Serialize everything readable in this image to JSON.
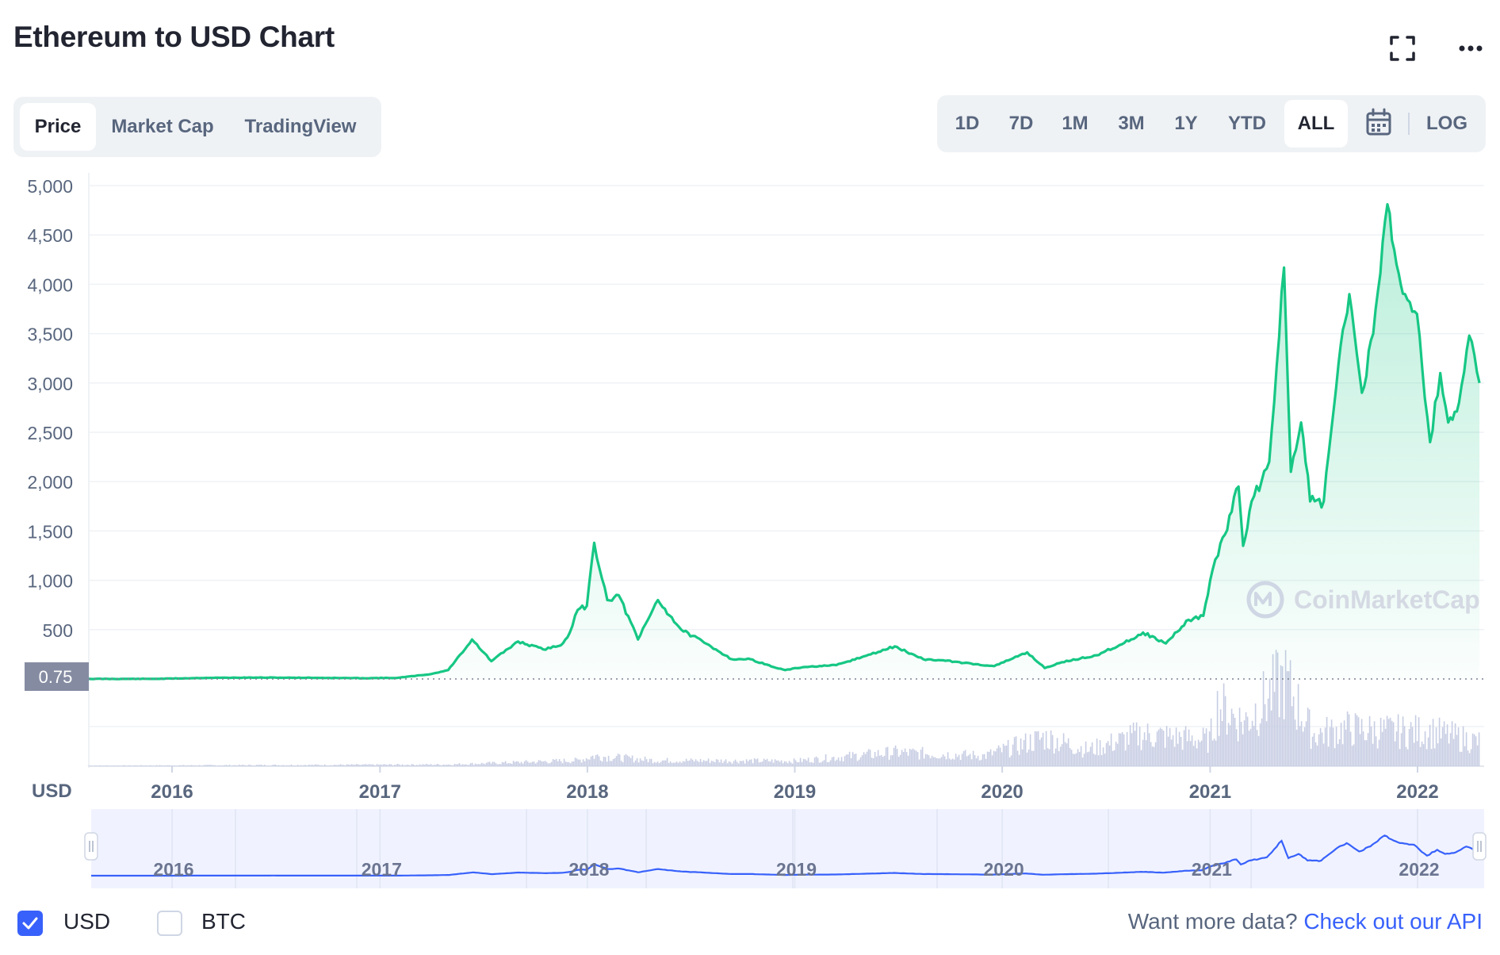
{
  "header": {
    "title": "Ethereum to USD Chart"
  },
  "tabs": [
    {
      "label": "Price",
      "active": true
    },
    {
      "label": "Market Cap",
      "active": false
    },
    {
      "label": "TradingView",
      "active": false
    }
  ],
  "ranges": [
    {
      "label": "1D"
    },
    {
      "label": "7D"
    },
    {
      "label": "1M"
    },
    {
      "label": "3M"
    },
    {
      "label": "1Y"
    },
    {
      "label": "YTD"
    },
    {
      "label": "ALL",
      "active": true
    }
  ],
  "log_label": "LOG",
  "icons": {
    "fullscreen": "fullscreen-icon",
    "more": "more-icon",
    "calendar": "calendar-icon",
    "check": "check-icon"
  },
  "colors": {
    "line": "#16c784",
    "accent": "#3861fb",
    "volume": "#c7cde3",
    "navigator_line": "#3861fb"
  },
  "watermark": "CoinMarketCap",
  "footer": {
    "usd_label": "USD",
    "btc_label": "BTC",
    "usd_checked": true,
    "btc_checked": false,
    "question": "Want more data?",
    "api_link": "Check out our API"
  },
  "chart_data": {
    "type": "area",
    "title": "",
    "xlabel": "",
    "ylabel": "USD",
    "ylim": [
      0,
      5000
    ],
    "yticks": [
      500,
      1000,
      1500,
      2000,
      2500,
      3000,
      3500,
      4000,
      4500,
      5000
    ],
    "ytick_labels": [
      "500",
      "1,000",
      "1,500",
      "2,000",
      "2,500",
      "3,000",
      "3,500",
      "4,000",
      "4,500",
      "5,000"
    ],
    "xticks": [
      "2016",
      "2017",
      "2018",
      "2019",
      "2020",
      "2021",
      "2022"
    ],
    "current_value_label": "0.75",
    "grid": true,
    "series": [
      {
        "name": "",
        "x": [
          "2015-08-07",
          "2015-12-01",
          "2016-03-01",
          "2016-06-01",
          "2016-09-01",
          "2016-12-01",
          "2017-02-01",
          "2017-04-01",
          "2017-05-01",
          "2017-06-12",
          "2017-07-16",
          "2017-09-01",
          "2017-10-15",
          "2017-11-15",
          "2017-12-01",
          "2017-12-15",
          "2017-12-31",
          "2018-01-13",
          "2018-02-05",
          "2018-02-25",
          "2018-03-31",
          "2018-05-05",
          "2018-06-15",
          "2018-08-15",
          "2018-09-12",
          "2018-10-15",
          "2018-11-25",
          "2018-12-15",
          "2019-01-15",
          "2019-03-15",
          "2019-05-15",
          "2019-06-26",
          "2019-08-15",
          "2019-09-15",
          "2019-11-15",
          "2019-12-18",
          "2020-02-14",
          "2020-03-16",
          "2020-04-15",
          "2020-06-15",
          "2020-08-15",
          "2020-09-05",
          "2020-10-15",
          "2020-11-24",
          "2020-12-20",
          "2021-01-05",
          "2021-01-15",
          "2021-02-20",
          "2021-02-28",
          "2021-03-15",
          "2021-04-15",
          "2021-05-11",
          "2021-05-23",
          "2021-06-10",
          "2021-06-26",
          "2021-07-20",
          "2021-08-15",
          "2021-09-03",
          "2021-09-25",
          "2021-10-15",
          "2021-11-09",
          "2021-11-25",
          "2021-12-10",
          "2021-12-31",
          "2022-01-23",
          "2022-02-10",
          "2022-02-24",
          "2022-03-15",
          "2022-04-02",
          "2022-04-20"
        ],
        "values": [
          0.75,
          1,
          11,
          14,
          12,
          8,
          11,
          50,
          90,
          400,
          180,
          380,
          300,
          340,
          470,
          700,
          740,
          1380,
          800,
          850,
          400,
          800,
          500,
          300,
          200,
          200,
          120,
          90,
          120,
          140,
          250,
          330,
          200,
          190,
          150,
          130,
          270,
          110,
          170,
          240,
          400,
          470,
          360,
          600,
          640,
          1100,
          1250,
          1950,
          1350,
          1800,
          2200,
          4170,
          2100,
          2600,
          1800,
          1800,
          3200,
          3900,
          2900,
          3500,
          4810,
          4200,
          3900,
          3700,
          2400,
          3100,
          2600,
          2800,
          3480,
          3000
        ]
      }
    ]
  }
}
